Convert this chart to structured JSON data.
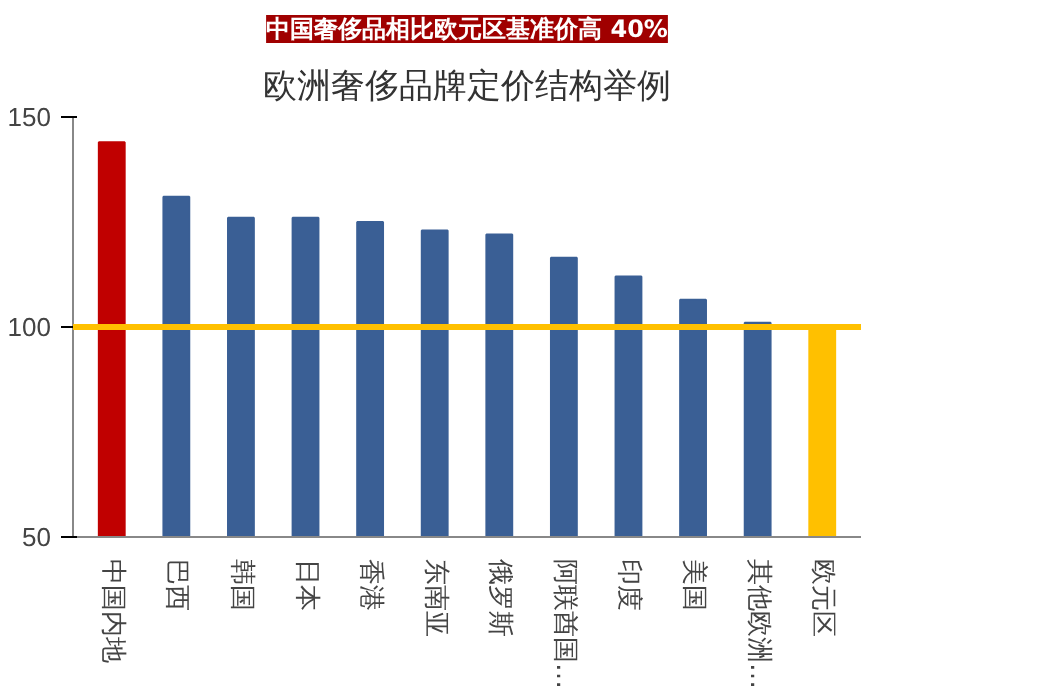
{
  "chart_data": {
    "type": "bar",
    "title": "中国奢侈品相比欧元区基准价高 40%",
    "subtitle": "欧洲奢侈品牌定价结构举例",
    "categories": [
      "中国内地",
      "巴西",
      "韩国",
      "日本",
      "香港",
      "东南亚",
      "俄罗斯",
      "阿联酋国…",
      "印度",
      "美国",
      "其他欧洲…",
      "欧元区"
    ],
    "values": [
      144,
      131,
      126,
      126,
      125,
      123,
      122,
      116.5,
      112,
      106.5,
      101,
      100
    ],
    "colors": [
      "#c00000",
      "#3a5f95",
      "#3a5f95",
      "#3a5f95",
      "#3a5f95",
      "#3a5f95",
      "#3a5f95",
      "#3a5f95",
      "#3a5f95",
      "#3a5f95",
      "#3a5f95",
      "#ffc000"
    ],
    "ylim": [
      50,
      150
    ],
    "yticks": [
      50,
      100,
      150
    ],
    "ref_lines": [
      {
        "axis": "y",
        "value": 100,
        "label": null,
        "color": "#ffc000"
      }
    ],
    "grid": false
  }
}
